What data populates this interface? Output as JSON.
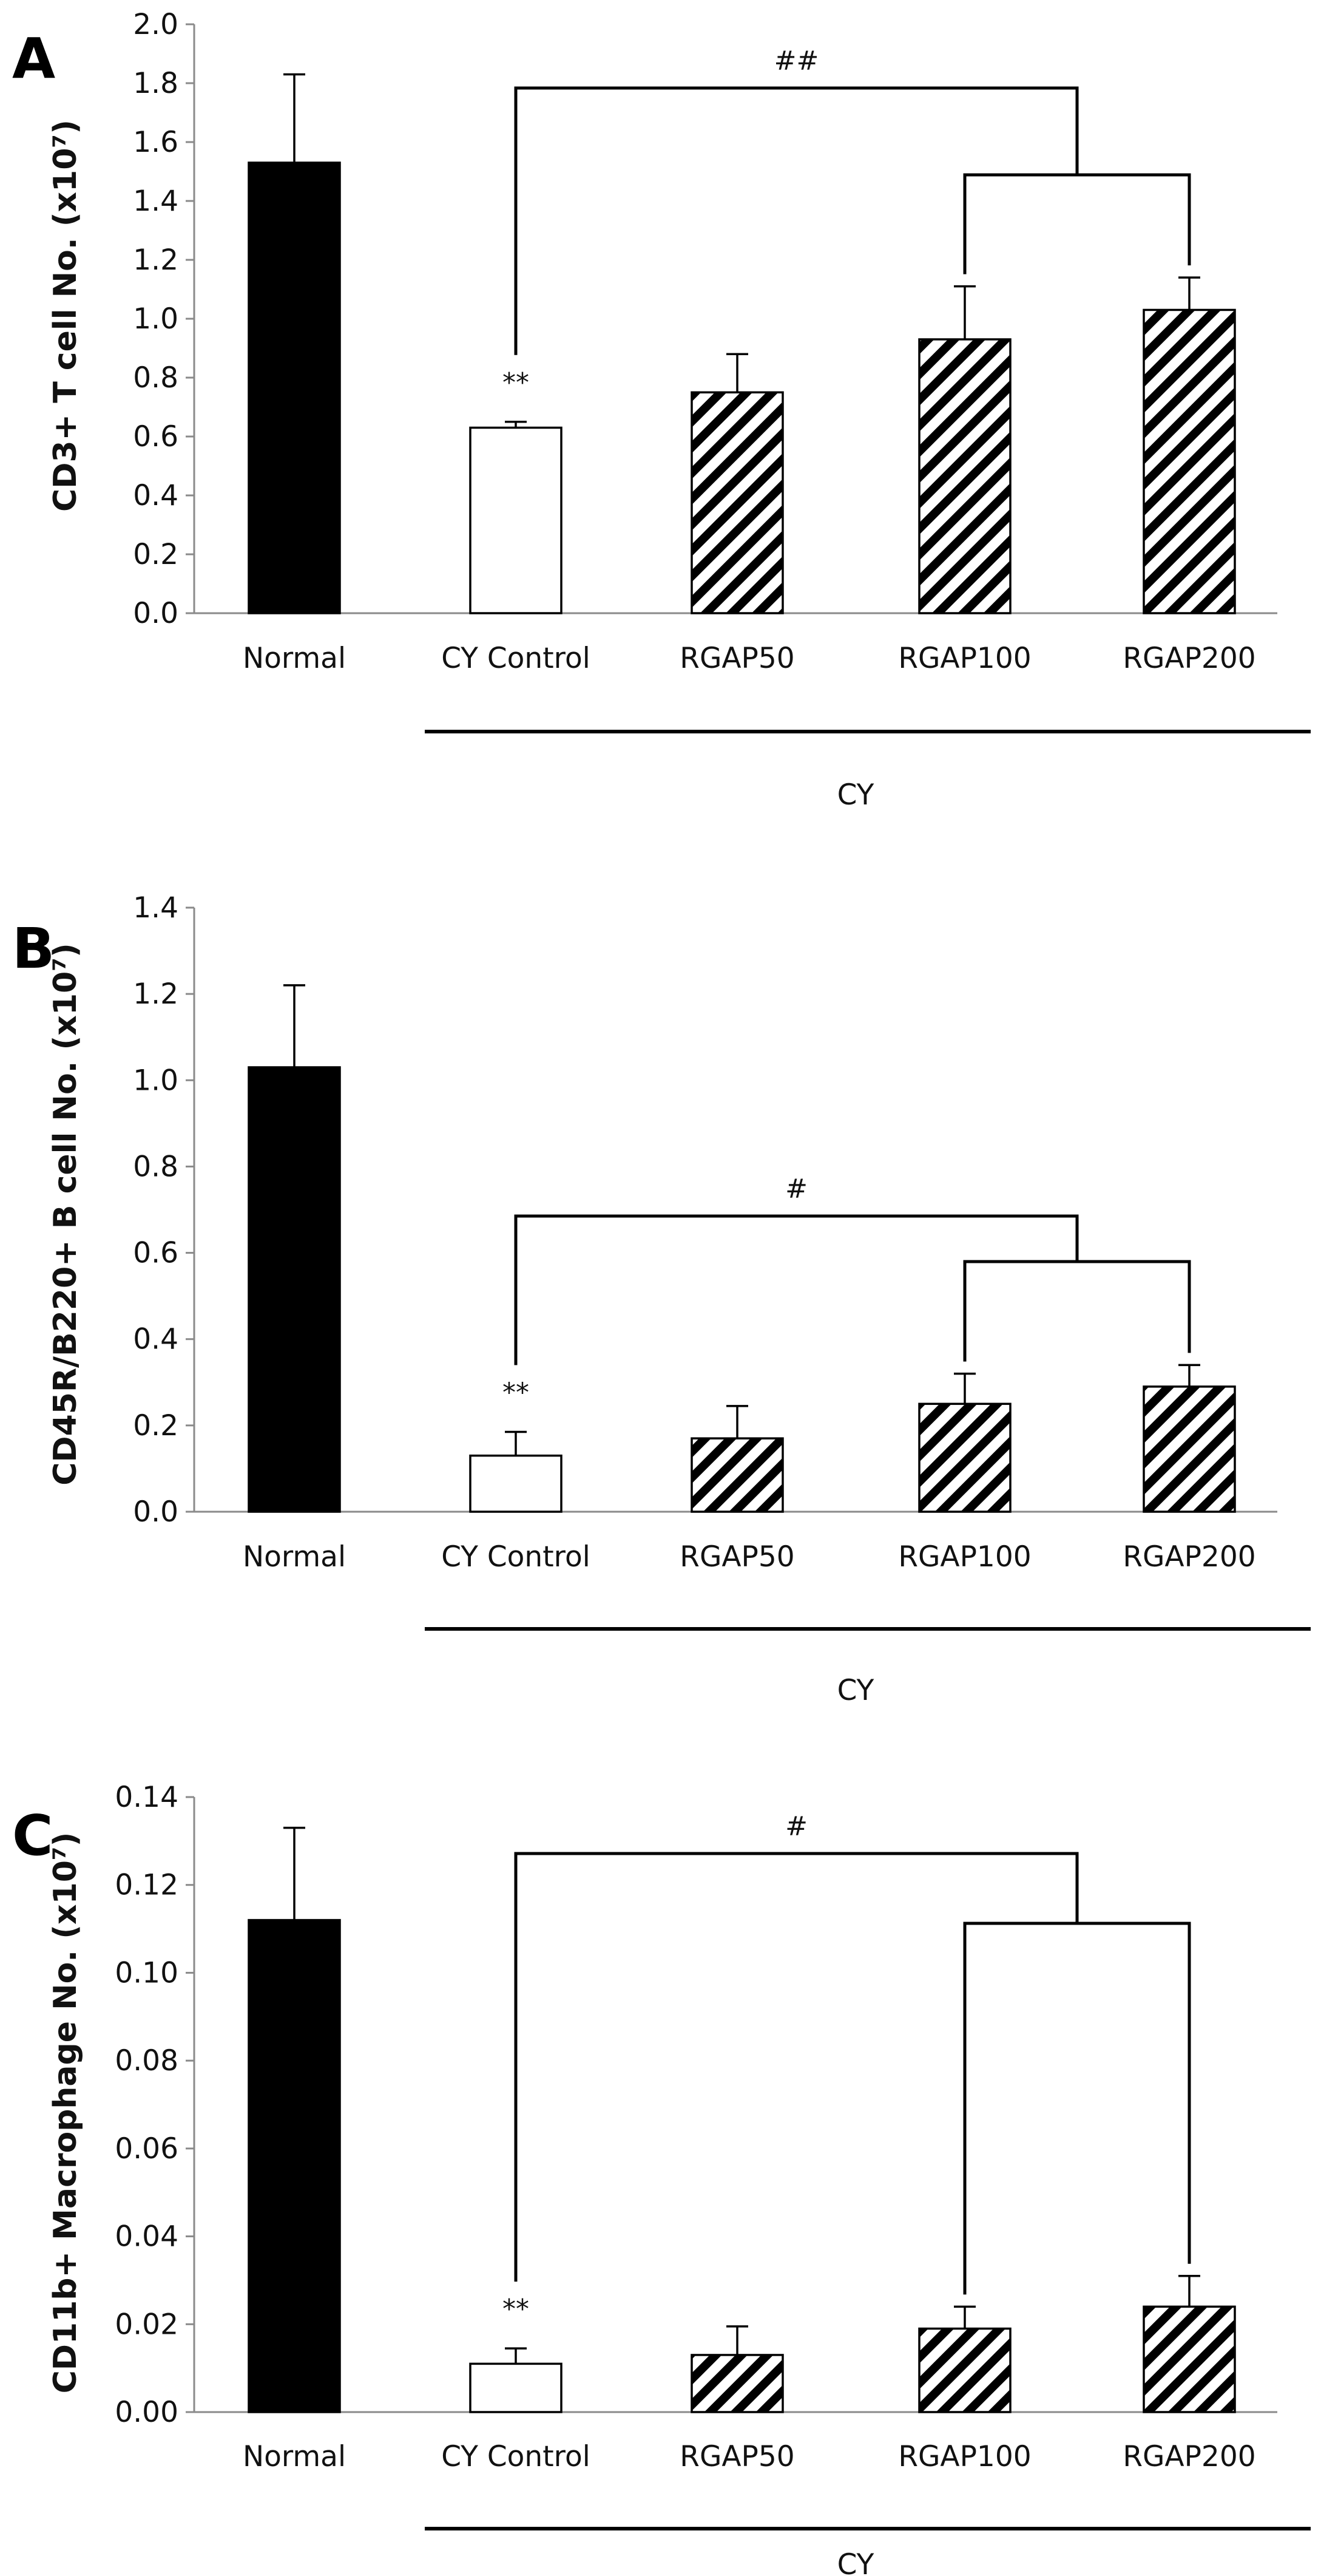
{
  "colors": {
    "normal_fill": "#000000",
    "control_fill": "#ffffff",
    "hatch_fill": "#ffffff",
    "stroke": "#000000"
  },
  "chart_data": [
    {
      "type": "bar",
      "panel_label": "A",
      "ylabel": "CD3+ T cell No. (x10⁷)",
      "ylim": [
        0,
        2.0
      ],
      "yticks": [
        "0.0",
        "0.2",
        "0.4",
        "0.6",
        "0.8",
        "1.0",
        "1.2",
        "1.4",
        "1.6",
        "1.8",
        "2.0"
      ],
      "categories": [
        "Normal",
        "CY Control",
        "RGAP50",
        "RGAP100",
        "RGAP200"
      ],
      "values": [
        1.53,
        0.63,
        0.75,
        0.93,
        1.03
      ],
      "errors": [
        0.3,
        0.02,
        0.13,
        0.18,
        0.11
      ],
      "fill": [
        "solid",
        "white",
        "hatch",
        "hatch",
        "hatch"
      ],
      "marks": {
        "control": "**",
        "bracket": "##"
      },
      "group_label": "CY"
    },
    {
      "type": "bar",
      "panel_label": "B",
      "ylabel": "CD45R/B220+ B cell No. (x10⁷)",
      "ylim": [
        0,
        1.4
      ],
      "yticks": [
        "0.0",
        "0.2",
        "0.4",
        "0.6",
        "0.8",
        "1.0",
        "1.2",
        "1.4"
      ],
      "categories": [
        "Normal",
        "CY Control",
        "RGAP50",
        "RGAP100",
        "RGAP200"
      ],
      "values": [
        1.03,
        0.13,
        0.17,
        0.25,
        0.29
      ],
      "errors": [
        0.19,
        0.055,
        0.075,
        0.07,
        0.05
      ],
      "fill": [
        "solid",
        "white",
        "hatch",
        "hatch",
        "hatch"
      ],
      "marks": {
        "control": "**",
        "bracket": "#"
      },
      "group_label": "CY"
    },
    {
      "type": "bar",
      "panel_label": "C",
      "ylabel": "CD11b+ Macrophage No. (x10⁷)",
      "ylim": [
        0,
        0.14
      ],
      "yticks": [
        "0.00",
        "0.02",
        "0.04",
        "0.06",
        "0.08",
        "0.10",
        "0.12",
        "0.14"
      ],
      "categories": [
        "Normal",
        "CY Control",
        "RGAP50",
        "RGAP100",
        "RGAP200"
      ],
      "values": [
        0.112,
        0.011,
        0.013,
        0.019,
        0.024
      ],
      "errors": [
        0.021,
        0.0035,
        0.0065,
        0.005,
        0.007
      ],
      "fill": [
        "solid",
        "white",
        "hatch",
        "hatch",
        "hatch"
      ],
      "marks": {
        "control": "**",
        "bracket": "#"
      },
      "group_label": "CY"
    }
  ]
}
